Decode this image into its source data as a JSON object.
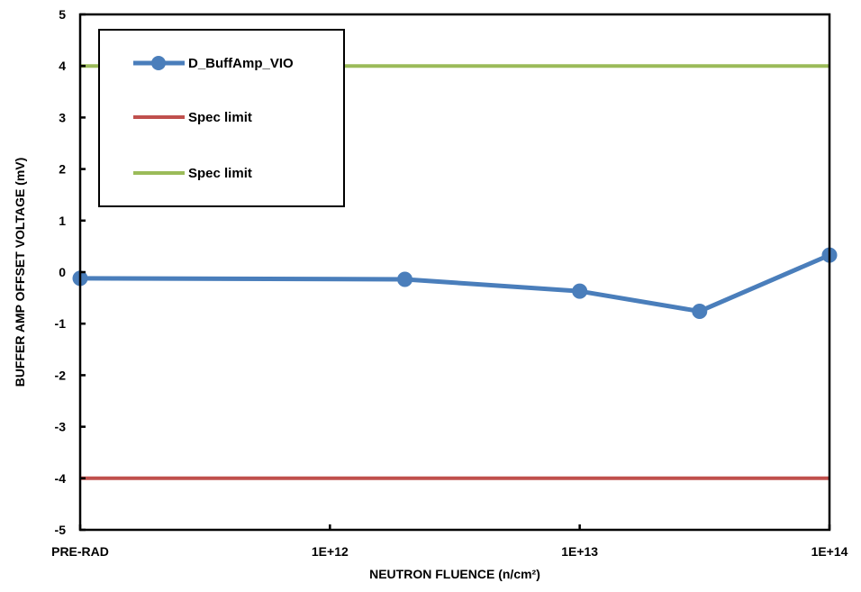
{
  "chart_data": {
    "type": "line",
    "title": "",
    "xlabel": "NEUTRON FLUENCE (n/cm²)",
    "ylabel": "BUFFER AMP OFFSET VOLTAGE (mV)",
    "x_scale": "log",
    "x_range_log10": [
      11,
      14
    ],
    "x_tick_values_log10": [
      11,
      12,
      13,
      14
    ],
    "x_tick_labels": [
      "PRE-RAD",
      "1E+12",
      "1E+13",
      "1E+14"
    ],
    "ylim": [
      -5,
      5
    ],
    "y_tick_labels": [
      "5",
      "4",
      "3",
      "2",
      "1",
      "0",
      "-1",
      "-2",
      "-3",
      "-4",
      "-5"
    ],
    "grid": false,
    "legend_position": "top-left",
    "series": [
      {
        "name": "D_BuffAmp_VIO",
        "color": "#4a7ebb",
        "marker": "circle",
        "x_log10": [
          11,
          12.3,
          13,
          13.48,
          14
        ],
        "values": [
          -0.12,
          -0.14,
          -0.37,
          -0.76,
          0.33
        ]
      },
      {
        "name": "Spec limit",
        "color": "#c0504d",
        "constant": -4
      },
      {
        "name": "Spec limit",
        "color": "#9bbb59",
        "constant": 4
      }
    ]
  }
}
